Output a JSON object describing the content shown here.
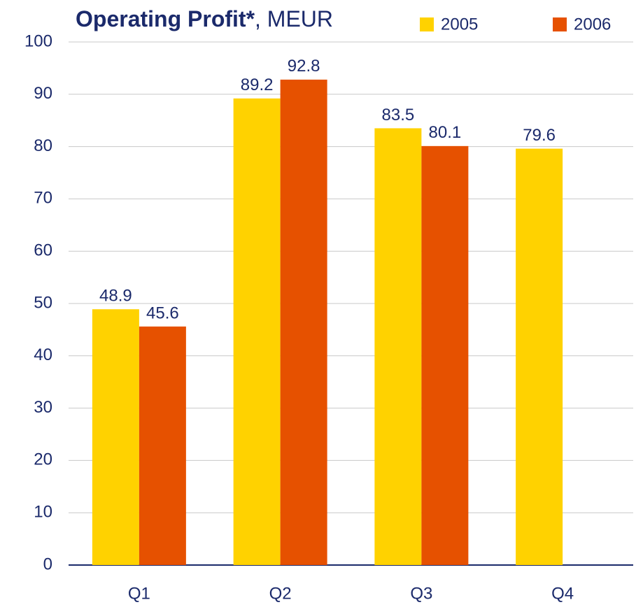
{
  "chart_data": {
    "type": "bar",
    "title": [
      "Operating Profit*",
      ", MEUR"
    ],
    "categories": [
      "Q1",
      "Q2",
      "Q3",
      "Q4"
    ],
    "series": [
      {
        "name": "2005",
        "color": "#ffd200",
        "values": [
          48.9,
          89.2,
          83.5,
          79.6
        ]
      },
      {
        "name": "2006",
        "color": "#e65100",
        "values": [
          45.6,
          92.8,
          80.1,
          null
        ]
      }
    ],
    "ylim": [
      0,
      100
    ],
    "yticks": [
      0,
      10,
      20,
      30,
      40,
      50,
      60,
      70,
      80,
      90,
      100
    ],
    "grid": true,
    "legend": "top-right"
  }
}
